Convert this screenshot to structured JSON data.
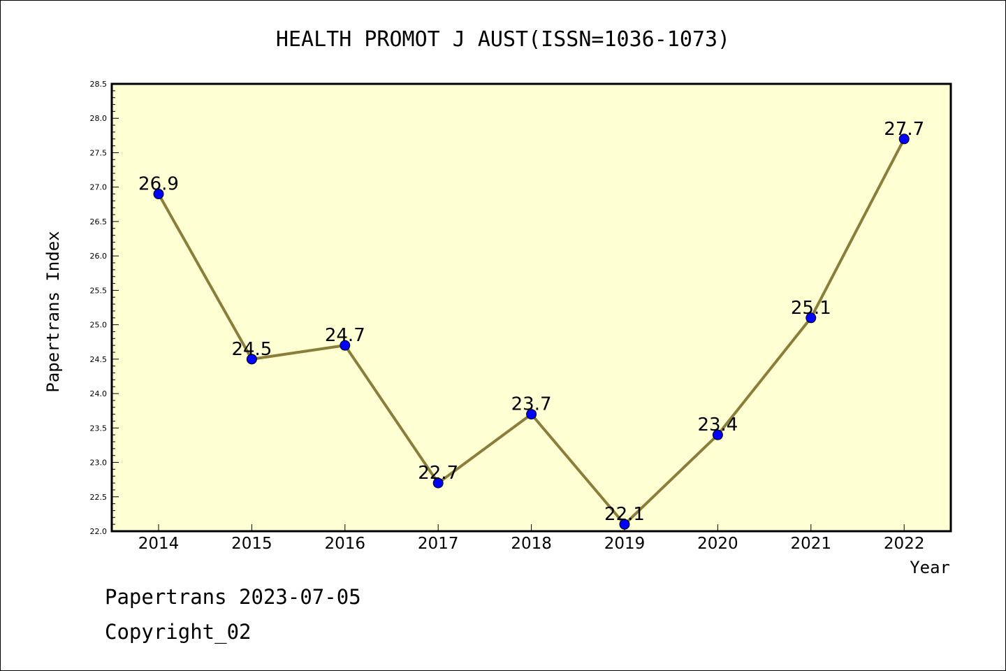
{
  "chart_data": {
    "type": "line",
    "title": "HEALTH PROMOT J AUST(ISSN=1036-1073)",
    "xlabel": "Year",
    "ylabel": "Papertrans Index",
    "categories": [
      "2014",
      "2015",
      "2016",
      "2017",
      "2018",
      "2019",
      "2020",
      "2021",
      "2022"
    ],
    "series": [
      {
        "values": [
          26.9,
          24.5,
          24.7,
          22.7,
          23.7,
          22.1,
          23.4,
          25.1,
          27.7
        ],
        "data_labels": [
          "26.9",
          "24.5",
          "24.7",
          "22.7",
          "23.7",
          "22.1",
          "23.4",
          "25.1",
          "27.7"
        ]
      }
    ],
    "ylim": [
      22.0,
      28.5
    ],
    "yticks": [
      "22.0",
      "22.5",
      "23.0",
      "23.5",
      "24.0",
      "24.5",
      "25.0",
      "25.5",
      "26.0",
      "26.5",
      "27.0",
      "27.5",
      "28.0",
      "28.5"
    ],
    "grid": false,
    "legend": "none",
    "colors": {
      "plot_background": "#ffffd4",
      "line": "#8b7d3a",
      "marker": "#0000ff"
    }
  },
  "footer": {
    "line1": "Papertrans 2023-07-05",
    "line2": "Copyright_02"
  }
}
